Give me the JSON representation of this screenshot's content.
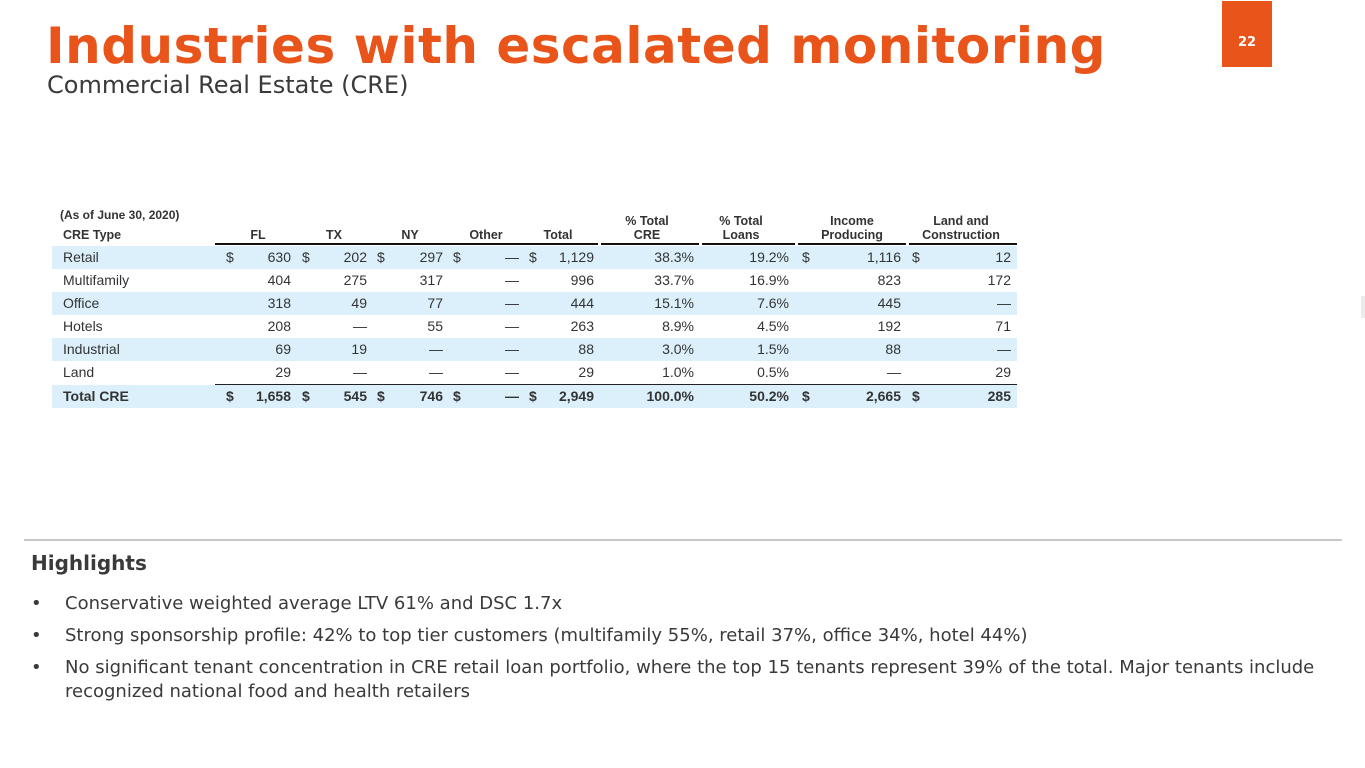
{
  "header": {
    "title": "Industries with escalated monitoring",
    "subtitle": "Commercial Real Estate (CRE)",
    "page_number": "22",
    "accent_color": "#e8541a"
  },
  "table": {
    "as_of": "(As of June 30, 2020)",
    "headers": {
      "type": "CRE Type",
      "fl": "FL",
      "tx": "TX",
      "ny": "NY",
      "other": "Other",
      "total": "Total",
      "pct_cre_1": "% Total",
      "pct_cre_2": "CRE",
      "pct_loans_1": "% Total",
      "pct_loans_2": "Loans",
      "inc_1": "Income",
      "inc_2": "Producing",
      "land_1": "Land and",
      "land_2": "Construction"
    },
    "currency_symbol": "$",
    "row_shade_color": "#dcf0fb",
    "rows": [
      {
        "type": "Retail",
        "fl": "630",
        "tx": "202",
        "ny": "297",
        "other": "—",
        "total": "1,129",
        "pct_cre": "38.3%",
        "pct_loans": "19.2%",
        "inc": "1,116",
        "land": "12"
      },
      {
        "type": "Multifamily",
        "fl": "404",
        "tx": "275",
        "ny": "317",
        "other": "—",
        "total": "996",
        "pct_cre": "33.7%",
        "pct_loans": "16.9%",
        "inc": "823",
        "land": "172"
      },
      {
        "type": "Office",
        "fl": "318",
        "tx": "49",
        "ny": "77",
        "other": "—",
        "total": "444",
        "pct_cre": "15.1%",
        "pct_loans": "7.6%",
        "inc": "445",
        "land": "—"
      },
      {
        "type": "Hotels",
        "fl": "208",
        "tx": "—",
        "ny": "55",
        "other": "—",
        "total": "263",
        "pct_cre": "8.9%",
        "pct_loans": "4.5%",
        "inc": "192",
        "land": "71"
      },
      {
        "type": "Industrial",
        "fl": "69",
        "tx": "19",
        "ny": "—",
        "other": "—",
        "total": "88",
        "pct_cre": "3.0%",
        "pct_loans": "1.5%",
        "inc": "88",
        "land": "—"
      },
      {
        "type": "Land",
        "fl": "29",
        "tx": "—",
        "ny": "—",
        "other": "—",
        "total": "29",
        "pct_cre": "1.0%",
        "pct_loans": "0.5%",
        "inc": "—",
        "land": "29"
      }
    ],
    "total_row": {
      "type": "Total CRE",
      "fl": "1,658",
      "tx": "545",
      "ny": "746",
      "other": "—",
      "total": "2,949",
      "pct_cre": "100.0%",
      "pct_loans": "50.2%",
      "inc": "2,665",
      "land": "285"
    }
  },
  "highlights": {
    "title": "Highlights",
    "bullet_char": "•",
    "items": [
      "Conservative weighted average LTV 61% and DSC 1.7x",
      "Strong sponsorship profile: 42% to top tier customers (multifamily 55%, retail 37%, office 34%, hotel 44%)",
      "No significant tenant concentration in CRE retail loan portfolio, where the top 15 tenants represent 39% of the total. Major tenants include recognized national food and health retailers"
    ]
  }
}
